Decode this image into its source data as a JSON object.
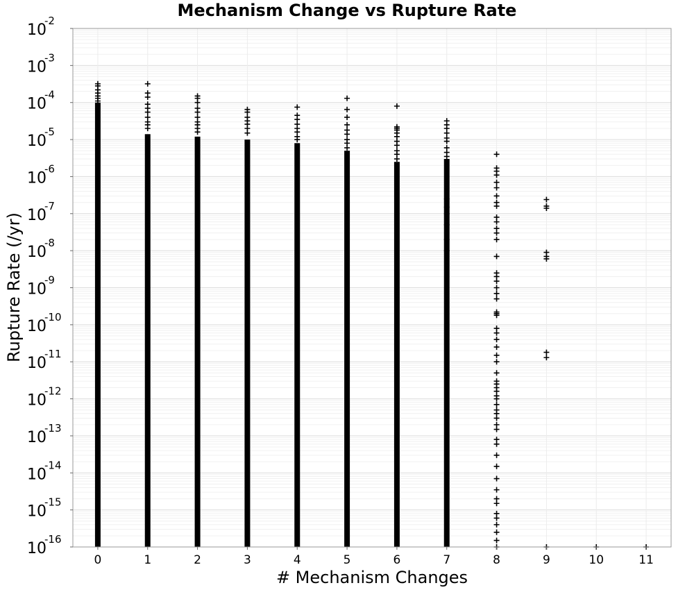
{
  "chart_data": {
    "type": "scatter",
    "title": "Mechanism Change vs Rupture Rate",
    "xlabel": "# Mechanism Changes",
    "ylabel": "Rupture Rate (/yr)",
    "x_ticks": [
      "0",
      "1",
      "2",
      "3",
      "4",
      "5",
      "6",
      "7",
      "8",
      "9",
      "10",
      "11"
    ],
    "xlim": [
      -0.5,
      11.5
    ],
    "y_scale": "log",
    "ylim": [
      1e-16,
      0.01
    ],
    "y_ticks": [
      {
        "base": "10",
        "exp": "-2"
      },
      {
        "base": "10",
        "exp": "-3"
      },
      {
        "base": "10",
        "exp": "-4"
      },
      {
        "base": "10",
        "exp": "-5"
      },
      {
        "base": "10",
        "exp": "-6"
      },
      {
        "base": "10",
        "exp": "-7"
      },
      {
        "base": "10",
        "exp": "-8"
      },
      {
        "base": "10",
        "exp": "-9"
      },
      {
        "base": "10",
        "exp": "-10"
      },
      {
        "base": "10",
        "exp": "-11"
      },
      {
        "base": "10",
        "exp": "-12"
      },
      {
        "base": "10",
        "exp": "-13"
      },
      {
        "base": "10",
        "exp": "-14"
      },
      {
        "base": "10",
        "exp": "-15"
      },
      {
        "base": "10",
        "exp": "-16"
      }
    ],
    "grid": true,
    "marker": "plus",
    "marker_color": "#000000",
    "point_colour": "#000000",
    "series": [
      {
        "columns": [
          {
            "x": 0,
            "dense_range": [
              1e-16,
              0.0001
            ],
            "points": [
              0.00032,
              0.00028,
              0.00022,
              0.00018,
              0.00015,
              0.00013,
              0.00011
            ]
          },
          {
            "x": 1,
            "dense_range": [
              1e-16,
              1.4e-05
            ],
            "points": [
              0.00032,
              0.00018,
              0.00014,
              9e-05,
              7e-05,
              5.5e-05,
              4e-05,
              3e-05,
              2.5e-05,
              2e-05
            ]
          },
          {
            "x": 2,
            "dense_range": [
              1e-16,
              1.2e-05
            ],
            "points": [
              0.00015,
              0.00013,
              0.0001,
              7e-05,
              5.5e-05,
              4e-05,
              3e-05,
              2.5e-05,
              2e-05,
              1.6e-05
            ]
          },
          {
            "x": 3,
            "dense_range": [
              1e-16,
              1e-05
            ],
            "points": [
              6.5e-05,
              5.5e-05,
              4e-05,
              3.2e-05,
              2.6e-05,
              2e-05,
              1.5e-05
            ]
          },
          {
            "x": 4,
            "dense_range": [
              1e-16,
              8e-06
            ],
            "points": [
              7.5e-05,
              4.5e-05,
              3.5e-05,
              2.6e-05,
              2e-05,
              1.6e-05,
              1.2e-05,
              1e-05
            ]
          },
          {
            "x": 5,
            "dense_range": [
              1e-16,
              5e-06
            ],
            "points": [
              0.00013,
              6.5e-05,
              4e-05,
              2.5e-05,
              1.8e-05,
              1.4e-05,
              1e-05,
              8e-06,
              6e-06
            ]
          },
          {
            "x": 6,
            "dense_range": [
              1e-16,
              2.5e-06
            ],
            "points": [
              8e-05,
              2.2e-05,
              2e-05,
              1.8e-05,
              1.5e-05,
              1.2e-05,
              9e-06,
              7e-06,
              5e-06,
              4e-06,
              3e-06
            ]
          },
          {
            "x": 7,
            "dense_range": [
              1e-16,
              3e-06
            ],
            "points": [
              3.2e-05,
              2.5e-05,
              2e-05,
              1.5e-05,
              1.1e-05,
              9e-06,
              6e-06,
              4.5e-06,
              3.5e-06,
              2.5e-07,
              1.5e-07,
              1e-07,
              5e-08,
              2e-08,
              1e-08
            ]
          }
        ]
      },
      {
        "x": 8,
        "values": [
          4e-06,
          1.7e-06,
          1.4e-06,
          1.1e-06,
          7e-07,
          5e-07,
          3e-07,
          2e-07,
          1.6e-07,
          8e-08,
          6e-08,
          4e-08,
          3e-08,
          2e-08,
          7e-09,
          2.5e-09,
          2e-09,
          1.5e-09,
          1e-09,
          7e-10,
          5e-10,
          2.2e-10,
          2e-10,
          1.8e-10,
          8e-11,
          6e-11,
          4e-11,
          2.5e-11,
          1.5e-11,
          1e-11,
          5e-12,
          3e-12,
          2.5e-12,
          2e-12,
          1.6e-12,
          1.2e-12,
          1e-12,
          7e-13,
          5e-13,
          4e-13,
          3e-13,
          2e-13,
          1.5e-13,
          8e-14,
          6e-14,
          3e-14,
          1.5e-14,
          7e-15,
          3.5e-15,
          2e-15,
          1.5e-15,
          8e-16,
          6e-16,
          4e-16,
          2.5e-16,
          1.5e-16,
          1e-16
        ]
      },
      {
        "x": 9,
        "values": [
          2.4e-07,
          1.6e-07,
          1.4e-07,
          9e-09,
          7e-09,
          6e-09,
          1.8e-11,
          1.3e-11,
          1e-16
        ]
      },
      {
        "x": 10,
        "values": [
          1e-16
        ]
      },
      {
        "x": 11,
        "values": [
          1e-16
        ]
      }
    ]
  }
}
